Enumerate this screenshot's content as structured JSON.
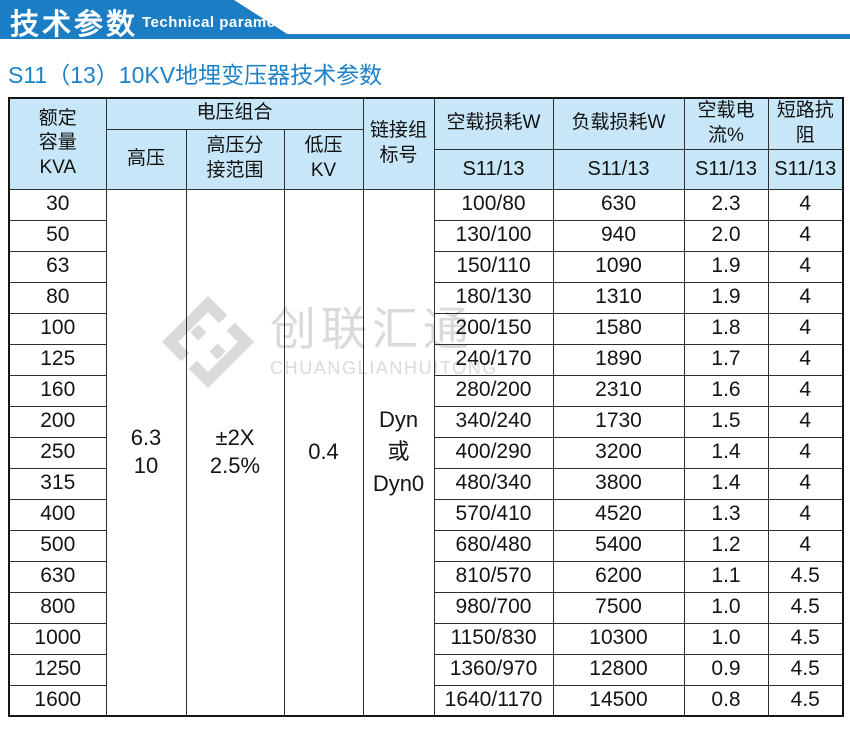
{
  "banner": {
    "title_cn": "技术参数",
    "title_en": "Technical parameter"
  },
  "page": {
    "subtitle": "S11（13）10KV地埋变压器技术参数"
  },
  "colors": {
    "banner_blue": "#1b7ec4",
    "subtitle_blue": "#1e82c8",
    "header_bg": "#c7e6f7",
    "grid_line": "#2e2e2e",
    "watermark_gray": "#d8dadb"
  },
  "watermark": {
    "name_cn": "创联汇通",
    "name_en": "CHUANGLIANHUITONG"
  },
  "table": {
    "headers": {
      "capacity": "额定\n容量\nKVA",
      "voltage_group": "电压组合",
      "high_voltage": "高压",
      "tap_range": "高压分\n接范围",
      "low_voltage": "低压\nKV",
      "connection_group": "链接组\n标号",
      "no_load_loss": "空载损耗W",
      "load_loss": "负载损耗W",
      "no_load_current": "空载电流%",
      "short_circuit_impedance": "短路抗阻",
      "model_no_load_loss": "S11/13",
      "model_load_loss": "S11/13",
      "model_no_load_current": "S11/13",
      "model_short_circuit": "S11/13"
    },
    "merged_values": {
      "high_voltage": "6.3\n10",
      "tap_range": "±2X\n2.5%",
      "low_voltage": "0.4",
      "connection_group": "Dyn\n或\nDyn0"
    },
    "rows": [
      {
        "kva": "30",
        "no_load_loss": "100/80",
        "load_loss": "630",
        "no_load_current": "2.3",
        "impedance": "4"
      },
      {
        "kva": "50",
        "no_load_loss": "130/100",
        "load_loss": "940",
        "no_load_current": "2.0",
        "impedance": "4"
      },
      {
        "kva": "63",
        "no_load_loss": "150/110",
        "load_loss": "1090",
        "no_load_current": "1.9",
        "impedance": "4"
      },
      {
        "kva": "80",
        "no_load_loss": "180/130",
        "load_loss": "1310",
        "no_load_current": "1.9",
        "impedance": "4"
      },
      {
        "kva": "100",
        "no_load_loss": "200/150",
        "load_loss": "1580",
        "no_load_current": "1.8",
        "impedance": "4"
      },
      {
        "kva": "125",
        "no_load_loss": "240/170",
        "load_loss": "1890",
        "no_load_current": "1.7",
        "impedance": "4"
      },
      {
        "kva": "160",
        "no_load_loss": "280/200",
        "load_loss": "2310",
        "no_load_current": "1.6",
        "impedance": "4"
      },
      {
        "kva": "200",
        "no_load_loss": "340/240",
        "load_loss": "1730",
        "no_load_current": "1.5",
        "impedance": "4"
      },
      {
        "kva": "250",
        "no_load_loss": "400/290",
        "load_loss": "3200",
        "no_load_current": "1.4",
        "impedance": "4"
      },
      {
        "kva": "315",
        "no_load_loss": "480/340",
        "load_loss": "3800",
        "no_load_current": "1.4",
        "impedance": "4"
      },
      {
        "kva": "400",
        "no_load_loss": "570/410",
        "load_loss": "4520",
        "no_load_current": "1.3",
        "impedance": "4"
      },
      {
        "kva": "500",
        "no_load_loss": "680/480",
        "load_loss": "5400",
        "no_load_current": "1.2",
        "impedance": "4"
      },
      {
        "kva": "630",
        "no_load_loss": "810/570",
        "load_loss": "6200",
        "no_load_current": "1.1",
        "impedance": "4.5"
      },
      {
        "kva": "800",
        "no_load_loss": "980/700",
        "load_loss": "7500",
        "no_load_current": "1.0",
        "impedance": "4.5"
      },
      {
        "kva": "1000",
        "no_load_loss": "1150/830",
        "load_loss": "10300",
        "no_load_current": "1.0",
        "impedance": "4.5"
      },
      {
        "kva": "1250",
        "no_load_loss": "1360/970",
        "load_loss": "12800",
        "no_load_current": "0.9",
        "impedance": "4.5"
      },
      {
        "kva": "1600",
        "no_load_loss": "1640/1170",
        "load_loss": "14500",
        "no_load_current": "0.8",
        "impedance": "4.5"
      }
    ]
  }
}
